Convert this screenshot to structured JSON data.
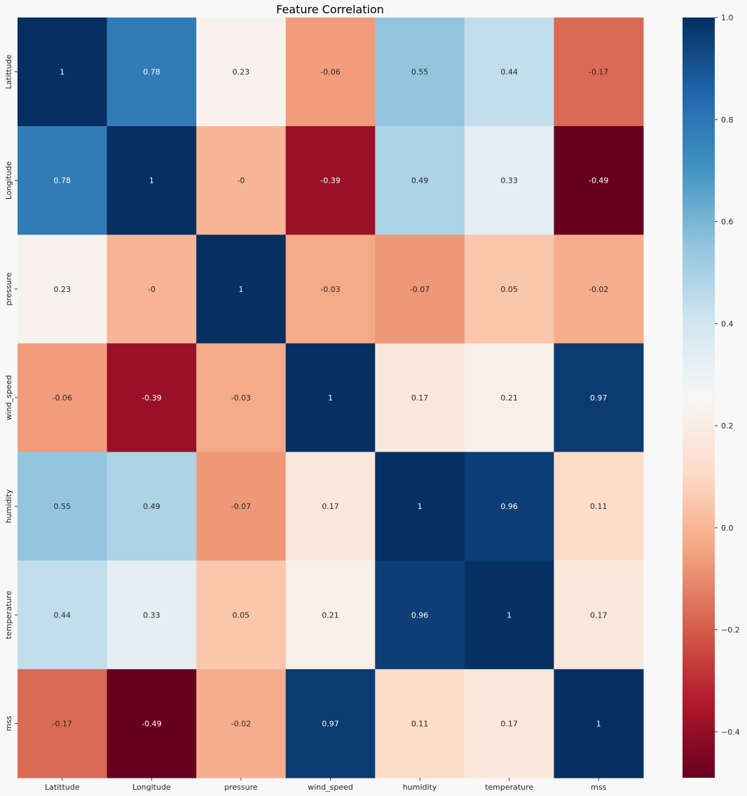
{
  "chart_data": {
    "type": "heatmap",
    "title": "Feature Correlation",
    "xlabel": "",
    "ylabel": "",
    "categories": [
      "Latittude",
      "Longitude",
      "pressure",
      "wind_speed",
      "humidity",
      "temperature",
      "mss"
    ],
    "row_labels": [
      "Latittude",
      "Longitude",
      "pressure",
      "wind_speed",
      "humidity",
      "temperature",
      "mss"
    ],
    "values": [
      [
        1,
        0.78,
        0.23,
        -0.06,
        0.55,
        0.44,
        -0.17
      ],
      [
        0.78,
        1,
        -0.0,
        -0.39,
        0.49,
        0.33,
        -0.49
      ],
      [
        0.23,
        -0.0,
        1,
        -0.03,
        -0.07,
        0.05,
        -0.02
      ],
      [
        -0.06,
        -0.39,
        -0.03,
        1,
        0.17,
        0.21,
        0.97
      ],
      [
        0.55,
        0.49,
        -0.07,
        0.17,
        1,
        0.96,
        0.11
      ],
      [
        0.44,
        0.33,
        0.05,
        0.21,
        0.96,
        1,
        0.17
      ],
      [
        -0.17,
        -0.49,
        -0.02,
        0.97,
        0.11,
        0.17,
        1
      ]
    ],
    "cell_labels": [
      [
        "1",
        "0.78",
        "0.23",
        "-0.06",
        "0.55",
        "0.44",
        "-0.17"
      ],
      [
        "0.78",
        "1",
        "-0",
        "-0.39",
        "0.49",
        "0.33",
        "-0.49"
      ],
      [
        "0.23",
        "-0",
        "1",
        "-0.03",
        "-0.07",
        "0.05",
        "-0.02"
      ],
      [
        "-0.06",
        "-0.39",
        "-0.03",
        "1",
        "0.17",
        "0.21",
        "0.97"
      ],
      [
        "0.55",
        "0.49",
        "-0.07",
        "0.17",
        "1",
        "0.96",
        "0.11"
      ],
      [
        "0.44",
        "0.33",
        "0.05",
        "0.21",
        "0.96",
        "1",
        "0.17"
      ],
      [
        "-0.17",
        "-0.49",
        "-0.02",
        "0.97",
        "0.11",
        "0.17",
        "1"
      ]
    ],
    "colorbar": {
      "colormap": "RdBu",
      "range": [
        -0.49,
        1.0
      ],
      "ticks": [
        1.0,
        0.8,
        0.6,
        0.4,
        0.2,
        0.0,
        -0.2,
        -0.4
      ],
      "tick_labels": [
        "1.0",
        "0.8",
        "0.6",
        "0.4",
        "0.2",
        "0.0",
        "−0.2",
        "−0.4"
      ]
    },
    "grid": false
  }
}
